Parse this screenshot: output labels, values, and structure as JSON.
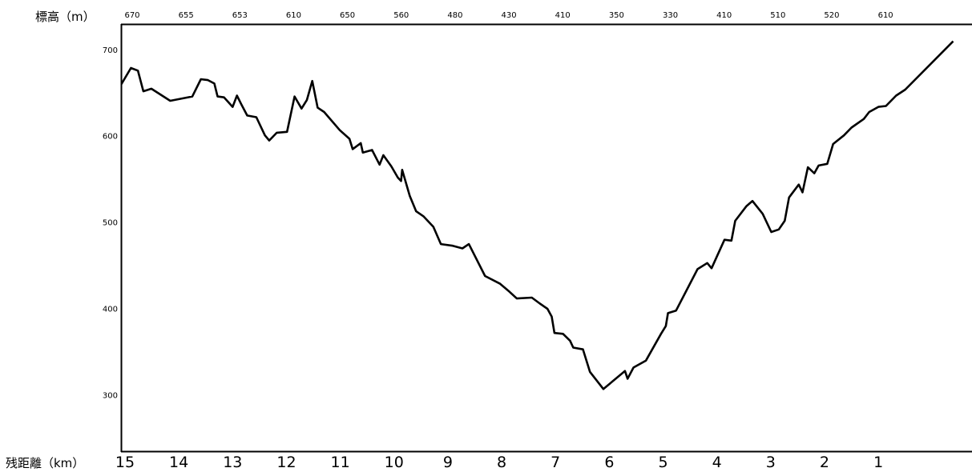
{
  "chart_data": {
    "type": "line",
    "title": "",
    "ylabel": "標高（m）",
    "xlabel": "残距離（km）",
    "ylim": [
      235,
      730
    ],
    "xlim": [
      15,
      -0.8
    ],
    "y_ticks": [
      700,
      600,
      500,
      400,
      300
    ],
    "x_ticks": [
      "15",
      "14",
      "13",
      "12",
      "11",
      "10",
      "9",
      "8",
      "7",
      "6",
      "5",
      "4",
      "3",
      "2",
      "1"
    ],
    "top_elevations": [
      {
        "x": 15,
        "label": "670"
      },
      {
        "x": 14,
        "label": "655"
      },
      {
        "x": 13,
        "label": "653"
      },
      {
        "x": 12,
        "label": "610"
      },
      {
        "x": 11,
        "label": "650"
      },
      {
        "x": 10,
        "label": "560"
      },
      {
        "x": 9,
        "label": "480"
      },
      {
        "x": 8,
        "label": "430"
      },
      {
        "x": 7,
        "label": "410"
      },
      {
        "x": 6,
        "label": "350"
      },
      {
        "x": 5,
        "label": "330"
      },
      {
        "x": 4,
        "label": "410"
      },
      {
        "x": 3,
        "label": "510"
      },
      {
        "x": 2,
        "label": "520"
      },
      {
        "x": 1,
        "label": "610"
      }
    ],
    "grid": false,
    "series": [
      {
        "values": [
          [
            15.01,
            660
          ],
          [
            14.83,
            679
          ],
          [
            14.7,
            676
          ],
          [
            14.6,
            652
          ],
          [
            14.45,
            655
          ],
          [
            14.1,
            641
          ],
          [
            13.69,
            646
          ],
          [
            13.53,
            666
          ],
          [
            13.4,
            665
          ],
          [
            13.28,
            661
          ],
          [
            13.22,
            646
          ],
          [
            13.1,
            645
          ],
          [
            12.94,
            634
          ],
          [
            12.86,
            647
          ],
          [
            12.78,
            637
          ],
          [
            12.67,
            624
          ],
          [
            12.5,
            622
          ],
          [
            12.34,
            601
          ],
          [
            12.26,
            595
          ],
          [
            12.12,
            604
          ],
          [
            11.93,
            605
          ],
          [
            11.79,
            646
          ],
          [
            11.66,
            632
          ],
          [
            11.56,
            642
          ],
          [
            11.46,
            664
          ],
          [
            11.36,
            633
          ],
          [
            11.24,
            628
          ],
          [
            10.95,
            607
          ],
          [
            10.77,
            597
          ],
          [
            10.71,
            585
          ],
          [
            10.56,
            592
          ],
          [
            10.52,
            581
          ],
          [
            10.35,
            584
          ],
          [
            10.21,
            567
          ],
          [
            10.14,
            578
          ],
          [
            9.99,
            565
          ],
          [
            9.87,
            552
          ],
          [
            9.81,
            548
          ],
          [
            9.79,
            561
          ],
          [
            9.65,
            531
          ],
          [
            9.53,
            513
          ],
          [
            9.39,
            507
          ],
          [
            9.21,
            495
          ],
          [
            9.07,
            475
          ],
          [
            8.85,
            473
          ],
          [
            8.67,
            470
          ],
          [
            8.55,
            475
          ],
          [
            8.25,
            438
          ],
          [
            7.97,
            429
          ],
          [
            7.8,
            420
          ],
          [
            7.66,
            412
          ],
          [
            7.38,
            413
          ],
          [
            7.23,
            406
          ],
          [
            7.09,
            400
          ],
          [
            7.01,
            391
          ],
          [
            6.96,
            372
          ],
          [
            6.8,
            371
          ],
          [
            6.67,
            363
          ],
          [
            6.61,
            355
          ],
          [
            6.43,
            353
          ],
          [
            6.3,
            327
          ],
          [
            6.05,
            307
          ],
          [
            5.65,
            328
          ],
          [
            5.6,
            319
          ],
          [
            5.49,
            332
          ],
          [
            5.26,
            340
          ],
          [
            4.98,
            371
          ],
          [
            4.89,
            380
          ],
          [
            4.85,
            395
          ],
          [
            4.7,
            398
          ],
          [
            4.3,
            446
          ],
          [
            4.12,
            453
          ],
          [
            4.04,
            447
          ],
          [
            3.8,
            480
          ],
          [
            3.67,
            479
          ],
          [
            3.6,
            502
          ],
          [
            3.39,
            519
          ],
          [
            3.28,
            525
          ],
          [
            3.09,
            510
          ],
          [
            2.93,
            489
          ],
          [
            2.79,
            492
          ],
          [
            2.68,
            502
          ],
          [
            2.6,
            529
          ],
          [
            2.42,
            544
          ],
          [
            2.35,
            535
          ],
          [
            2.25,
            564
          ],
          [
            2.13,
            557
          ],
          [
            2.05,
            566
          ],
          [
            1.89,
            568
          ],
          [
            1.78,
            591
          ],
          [
            1.58,
            601
          ],
          [
            1.44,
            610
          ],
          [
            1.21,
            620
          ],
          [
            1.11,
            628
          ],
          [
            0.94,
            634
          ],
          [
            0.8,
            635
          ],
          [
            0.61,
            647
          ],
          [
            0.44,
            654
          ],
          [
            -0.45,
            710
          ]
        ]
      }
    ]
  }
}
